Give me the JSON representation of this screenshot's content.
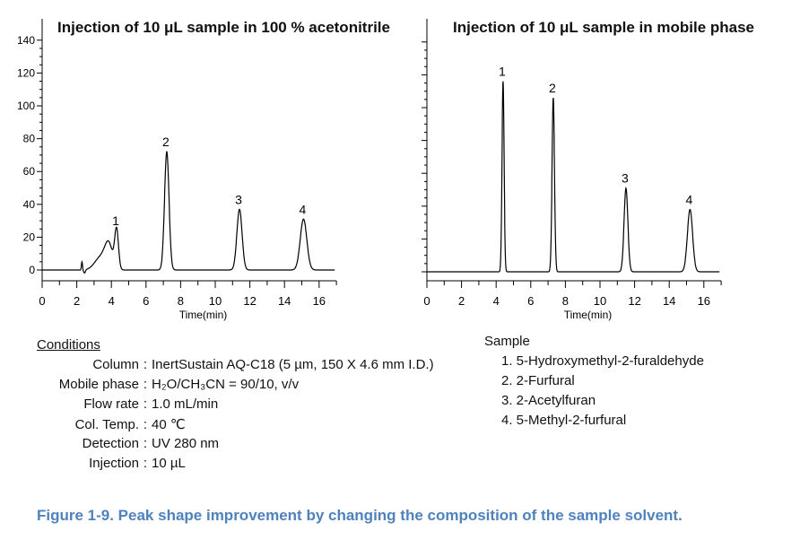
{
  "chart_data": [
    {
      "type": "line",
      "title": "Injection of 10 μL sample in 100 % acetonitrile",
      "xlabel": "Time(min)",
      "ylabel": "",
      "xlim": [
        0,
        17
      ],
      "ylim": [
        -5,
        145
      ],
      "x_ticks": [
        "0",
        "2",
        "4",
        "6",
        "8",
        "10",
        "12",
        "14",
        "16"
      ],
      "y_ticks": [
        "0",
        "20",
        "40",
        "60",
        "80",
        "100",
        "120",
        "140"
      ],
      "peaks": [
        {
          "label": "1",
          "time": 4.3,
          "height": 24
        },
        {
          "label": "2",
          "time": 7.2,
          "height": 72
        },
        {
          "label": "3",
          "time": 11.4,
          "height": 37
        },
        {
          "label": "4",
          "time": 15.1,
          "height": 31
        }
      ]
    },
    {
      "type": "line",
      "title": "Injection of 10 μL sample in mobile phase",
      "xlabel": "Time(min)",
      "ylabel": "",
      "xlim": [
        0,
        17
      ],
      "ylim": [
        -5,
        145
      ],
      "x_ticks": [
        "0",
        "2",
        "4",
        "6",
        "8",
        "10",
        "12",
        "14",
        "16"
      ],
      "peaks": [
        {
          "label": "1",
          "time": 4.4,
          "height": 116
        },
        {
          "label": "2",
          "time": 7.3,
          "height": 106
        },
        {
          "label": "3",
          "time": 11.5,
          "height": 51
        },
        {
          "label": "4",
          "time": 15.2,
          "height": 38
        }
      ]
    }
  ],
  "conditions": {
    "title": "Conditions",
    "rows": [
      {
        "label": "Column",
        "value": "InertSustain AQ-C18 (5 µm, 150 X 4.6 mm I.D.)"
      },
      {
        "label": "Mobile phase",
        "value": "H₂O/CH₃CN = 90/10, v/v"
      },
      {
        "label": "Flow rate",
        "value": "1.0 mL/min"
      },
      {
        "label": "Col. Temp.",
        "value": "40 ℃"
      },
      {
        "label": "Detection",
        "value": "UV 280 nm"
      },
      {
        "label": "Injection",
        "value": "10 µL"
      }
    ]
  },
  "sample": {
    "title": "Sample",
    "items": [
      "1. 5-Hydroxymethyl-2-furaldehyde",
      "2. 2-Furfural",
      "3. 2-Acetylfuran",
      "4. 5-Methyl-2-furfural"
    ]
  },
  "caption": "Figure 1-9. Peak shape improvement by changing the composition of the sample solvent.",
  "colors": {
    "caption": "#4f81bd",
    "trace": "#000000"
  }
}
